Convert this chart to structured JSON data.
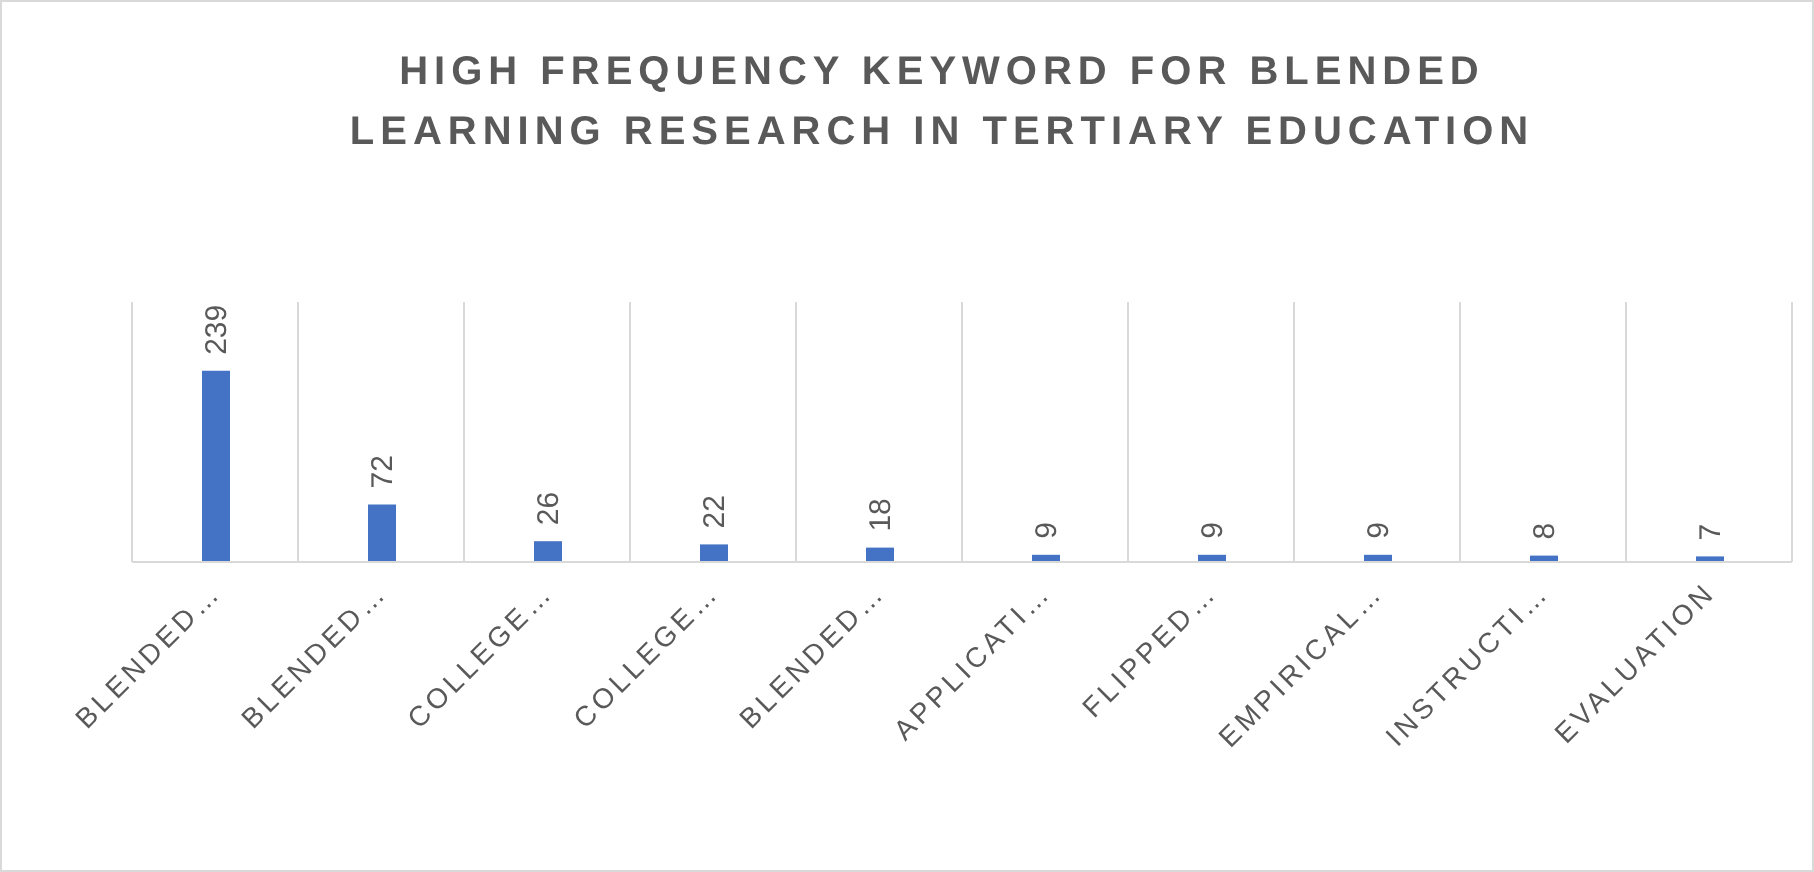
{
  "chart_data": {
    "type": "bar",
    "title": "HIGH FREQUENCY KEYWORD FOR BLENDED LEARNING RESEARCH IN TERTIARY EDUCATION",
    "categories": [
      "BLENDED…",
      "BLENDED…",
      "COLLEGE…",
      "COLLEGE…",
      "BLENDED…",
      "APPLICATI…",
      "FLIPPED…",
      "EMPIRICAL…",
      "INSTRUCTI…",
      "EVALUATION"
    ],
    "values": [
      239,
      72,
      26,
      22,
      18,
      9,
      9,
      9,
      8,
      7
    ],
    "color": "#4472c4",
    "data_labels": true,
    "grid": "x"
  }
}
